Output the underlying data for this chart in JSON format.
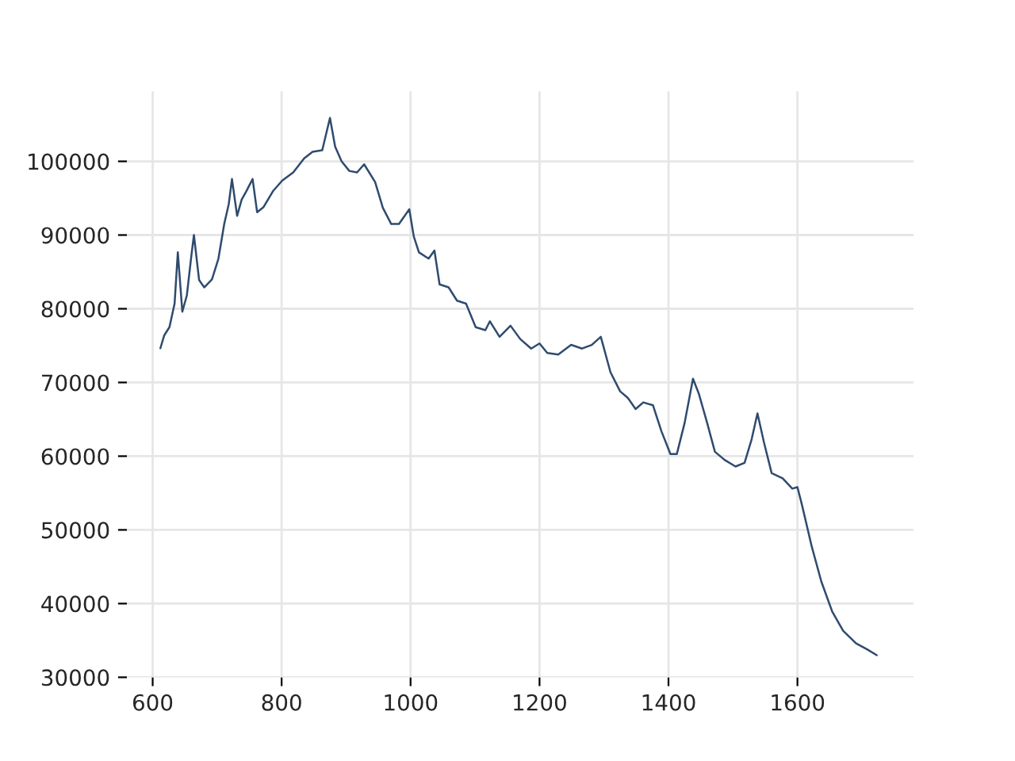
{
  "chart_data": {
    "type": "line",
    "x": [
      612,
      618,
      626,
      634,
      639,
      646,
      653,
      660,
      664,
      672,
      680,
      692,
      702,
      711,
      718,
      723,
      731,
      738,
      745,
      755,
      762,
      772,
      787,
      801,
      818,
      835,
      848,
      863,
      875,
      883,
      893,
      905,
      917,
      928,
      945,
      957,
      970,
      982,
      998,
      1005,
      1013,
      1028,
      1037,
      1045,
      1059,
      1072,
      1086,
      1101,
      1116,
      1123,
      1138,
      1155,
      1170,
      1187,
      1200,
      1212,
      1229,
      1249,
      1266,
      1281,
      1295,
      1310,
      1325,
      1337,
      1349,
      1361,
      1376,
      1389,
      1403,
      1413,
      1425,
      1438,
      1447,
      1460,
      1472,
      1487,
      1504,
      1518,
      1529,
      1538,
      1548,
      1560,
      1577,
      1592,
      1600,
      1607,
      1622,
      1637,
      1654,
      1671,
      1691,
      1708,
      1723
    ],
    "series": [
      {
        "color": "#2f4b6e",
        "values": [
          74650,
          76400,
          77500,
          80700,
          87650,
          79600,
          81800,
          87200,
          90000,
          83900,
          82900,
          84000,
          86800,
          91500,
          94200,
          97600,
          92600,
          94800,
          95900,
          97600,
          93100,
          93800,
          96000,
          97400,
          98500,
          100400,
          101300,
          101500,
          105900,
          102000,
          100000,
          98700,
          98500,
          99600,
          97200,
          93700,
          91500,
          91500,
          93500,
          89800,
          87650,
          86800,
          87900,
          83300,
          82900,
          81100,
          80700,
          77500,
          77100,
          78300,
          76200,
          77700,
          75900,
          74600,
          75300,
          74000,
          73800,
          75100,
          74600,
          75100,
          76200,
          71400,
          68800,
          67900,
          66400,
          67300,
          66900,
          63400,
          60300,
          60300,
          64500,
          70500,
          68500,
          64500,
          60600,
          59500,
          58600,
          59100,
          62300,
          65800,
          61900,
          57700,
          57000,
          55600,
          55800,
          53400,
          47800,
          43000,
          38900,
          36300,
          34600,
          33800,
          33000
        ]
      }
    ],
    "xlim": [
      560,
      1780
    ],
    "ylim": [
      30000,
      109500
    ],
    "xticks": [
      600,
      800,
      1000,
      1200,
      1400,
      1600
    ],
    "yticks": [
      30000,
      40000,
      50000,
      60000,
      70000,
      80000,
      90000,
      100000
    ],
    "grid": true
  }
}
